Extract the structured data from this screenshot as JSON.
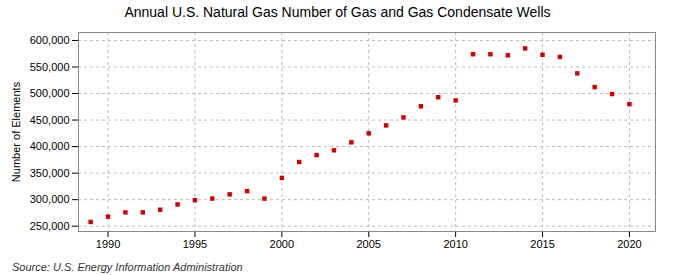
{
  "chart_data": {
    "type": "scatter",
    "title": "Annual U.S. Natural Gas Number of Gas and Gas Condensate Wells",
    "ylabel": "Number of Elements",
    "source": "Source: U.S. Energy Information Administration",
    "x": [
      1989,
      1990,
      1991,
      1992,
      1993,
      1994,
      1995,
      1996,
      1997,
      1998,
      1999,
      2000,
      2001,
      2002,
      2003,
      2004,
      2005,
      2006,
      2007,
      2008,
      2009,
      2010,
      2011,
      2012,
      2013,
      2014,
      2015,
      2016,
      2017,
      2018,
      2019,
      2020
    ],
    "values": [
      258000,
      268000,
      276000,
      276000,
      281000,
      291000,
      299000,
      302000,
      310000,
      316000,
      302000,
      341000,
      371000,
      384000,
      393000,
      408000,
      425000,
      440000,
      455000,
      476000,
      493000,
      487000,
      574000,
      574000,
      572000,
      585000,
      573000,
      569000,
      538000,
      512000,
      499000,
      480000
    ],
    "color": "#cc0000",
    "marker": "square",
    "xlim": [
      1988.3,
      2021.5
    ],
    "ylim": [
      240000,
      615000
    ],
    "xticks": [
      1990,
      1995,
      2000,
      2005,
      2010,
      2015,
      2020
    ],
    "yticks": [
      {
        "value": 250000,
        "label": "250,000"
      },
      {
        "value": 300000,
        "label": "300,000"
      },
      {
        "value": 350000,
        "label": "350,000"
      },
      {
        "value": 400000,
        "label": "400,000"
      },
      {
        "value": 450000,
        "label": "450,000"
      },
      {
        "value": 500000,
        "label": "500,000"
      },
      {
        "value": 550000,
        "label": "550,000"
      },
      {
        "value": 600000,
        "label": "600,000"
      }
    ],
    "grid": true
  }
}
